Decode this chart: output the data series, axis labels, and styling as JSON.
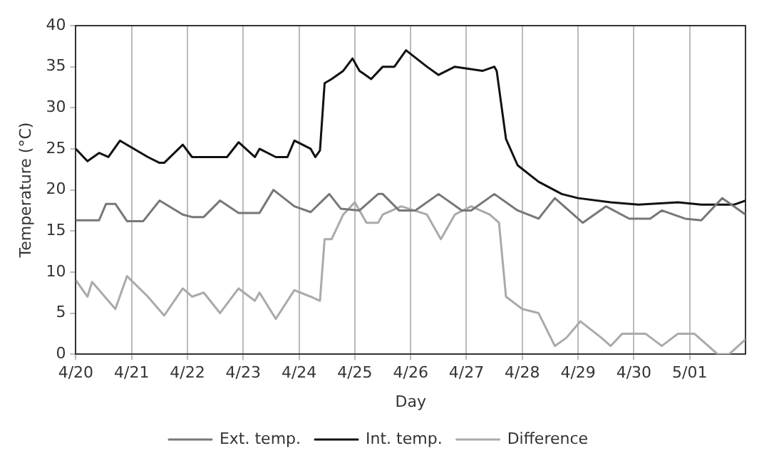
{
  "chart_data": {
    "type": "line",
    "xlabel": "Day",
    "ylabel": "Temperature (°C)",
    "xlim": [
      "--04-20",
      "--05-02"
    ],
    "xticks": [
      {
        "value": "--04-20",
        "label": "4/20"
      },
      {
        "value": "--04-21",
        "label": "4/21"
      },
      {
        "value": "--04-22",
        "label": "4/22"
      },
      {
        "value": "--04-23",
        "label": "4/23"
      },
      {
        "value": "--04-24",
        "label": "4/24"
      },
      {
        "value": "--04-25",
        "label": "4/25"
      },
      {
        "value": "--04-26",
        "label": "4/26"
      },
      {
        "value": "--04-27",
        "label": "4/27"
      },
      {
        "value": "--04-28",
        "label": "4/28"
      },
      {
        "value": "--04-29",
        "label": "4/29"
      },
      {
        "value": "--04-30",
        "label": "4/30"
      },
      {
        "value": "--05-01",
        "label": "5/01"
      }
    ],
    "ylim": [
      0,
      40
    ],
    "yticks": [
      0,
      5,
      10,
      15,
      20,
      25,
      30,
      35,
      40
    ],
    "grid": "x",
    "legend": "bottom",
    "marker": "none",
    "line_style": "solid",
    "series": [
      {
        "name": "Ext. temp.",
        "color": "#777777",
        "x": [
          "--04-20T00:00",
          "--04-20T10:00",
          "--04-20T13:00",
          "--04-20T17:00",
          "--04-20T22:00",
          "--04-21T05:00",
          "--04-21T12:00",
          "--04-21T22:00",
          "--04-22T02:00",
          "--04-22T07:00",
          "--04-22T14:00",
          "--04-22T22:00",
          "--04-23T07:00",
          "--04-23T13:00",
          "--04-23T22:00",
          "--04-24T05:00",
          "--04-24T13:00",
          "--04-24T18:00",
          "--04-25T02:00",
          "--04-25T10:00",
          "--04-25T12:00",
          "--04-25T19:00",
          "--04-26T02:00",
          "--04-26T12:00",
          "--04-26T22:00",
          "--04-27T02:00",
          "--04-27T12:00",
          "--04-27T22:00",
          "--04-28T07:00",
          "--04-28T14:00",
          "--04-29T02:00",
          "--04-29T12:00",
          "--04-29T22:00",
          "--04-30T07:00",
          "--04-30T12:00",
          "--04-30T22:00",
          "--05-01T05:00",
          "--05-01T14:00",
          "--05-02T00:00"
        ],
        "values": [
          16.3,
          16.3,
          18.3,
          18.3,
          16.2,
          16.2,
          18.7,
          17,
          16.7,
          16.7,
          18.7,
          17.2,
          17.2,
          20,
          18,
          17.3,
          19.5,
          17.7,
          17.5,
          19.5,
          19.5,
          17.5,
          17.5,
          19.5,
          17.5,
          17.5,
          19.5,
          17.5,
          16.5,
          19,
          16,
          18,
          16.5,
          16.5,
          17.5,
          16.5,
          16.3,
          19,
          17
        ]
      },
      {
        "name": "Int. temp.",
        "color": "#111111",
        "x": [
          "--04-20T00:00",
          "--04-20T05:00",
          "--04-20T10:00",
          "--04-20T14:00",
          "--04-20T19:00",
          "--04-21T07:00",
          "--04-21T12:00",
          "--04-21T14:00",
          "--04-21T22:00",
          "--04-22T02:00",
          "--04-22T10:00",
          "--04-22T17:00",
          "--04-22T22:00",
          "--04-23T05:00",
          "--04-23T07:00",
          "--04-23T14:00",
          "--04-23T19:00",
          "--04-23T22:00",
          "--04-24T05:00",
          "--04-24T07:00",
          "--04-24T09:00",
          "--04-24T11:00",
          "--04-24T14:00",
          "--04-24T19:00",
          "--04-24T23:00",
          "--04-25T02:00",
          "--04-25T07:00",
          "--04-25T12:00",
          "--04-25T17:00",
          "--04-25T22:00",
          "--04-26T07:00",
          "--04-26T12:00",
          "--04-26T19:00",
          "--04-27T07:00",
          "--04-27T12:00",
          "--04-27T13:00",
          "--04-27T17:00",
          "--04-27T22:00",
          "--04-28T07:00",
          "--04-28T17:00",
          "--04-29T00:00",
          "--04-29T14:00",
          "--04-30T02:00",
          "--04-30T19:00",
          "--05-01T05:00",
          "--05-01T19:00",
          "--05-02T00:00"
        ],
        "values": [
          25,
          23.5,
          24.5,
          24,
          26,
          24,
          23.3,
          23.3,
          25.5,
          24,
          24,
          24,
          25.8,
          24,
          25,
          24,
          24,
          26,
          25,
          24,
          24.8,
          33,
          33.5,
          34.5,
          36,
          34.5,
          33.5,
          35,
          35,
          37,
          35,
          34,
          35,
          34.5,
          35,
          34.5,
          26.2,
          23,
          21,
          19.5,
          19,
          18.5,
          18.2,
          18.5,
          18.2,
          18.2,
          18.7
        ]
      },
      {
        "name": "Difference",
        "color": "#aaaaaa",
        "x": [
          "--04-20T00:00",
          "--04-20T05:00",
          "--04-20T07:00",
          "--04-20T17:00",
          "--04-20T22:00",
          "--04-21T07:00",
          "--04-21T14:00",
          "--04-21T22:00",
          "--04-22T02:00",
          "--04-22T07:00",
          "--04-22T14:00",
          "--04-22T22:00",
          "--04-23T05:00",
          "--04-23T07:00",
          "--04-23T14:00",
          "--04-23T22:00",
          "--04-24T05:00",
          "--04-24T09:00",
          "--04-24T11:00",
          "--04-24T14:00",
          "--04-24T19:00",
          "--04-25T00:00",
          "--04-25T05:00",
          "--04-25T10:00",
          "--04-25T12:00",
          "--04-25T20:00",
          "--04-26T07:00",
          "--04-26T13:00",
          "--04-26T19:00",
          "--04-27T02:00",
          "--04-27T10:00",
          "--04-27T14:00",
          "--04-27T17:00",
          "--04-28T00:00",
          "--04-28T07:00",
          "--04-28T14:00",
          "--04-28T19:00",
          "--04-29T01:00",
          "--04-29T10:00",
          "--04-29T14:00",
          "--04-29T19:00",
          "--04-30T05:00",
          "--04-30T12:00",
          "--04-30T19:00",
          "--05-01T02:00",
          "--05-01T12:00",
          "--05-01T17:00",
          "--05-02T00:00"
        ],
        "values": [
          9,
          7,
          8.8,
          5.5,
          9.5,
          7,
          4.7,
          8,
          7,
          7.5,
          5,
          8,
          6.5,
          7.5,
          4.3,
          7.8,
          7,
          6.5,
          14,
          14,
          17,
          18.5,
          16,
          16,
          17,
          18,
          17,
          14,
          17,
          18,
          17,
          16,
          7,
          5.5,
          5,
          1,
          2,
          4,
          2,
          1,
          2.5,
          2.5,
          1,
          2.5,
          2.5,
          0,
          0,
          1.8
        ]
      }
    ]
  }
}
